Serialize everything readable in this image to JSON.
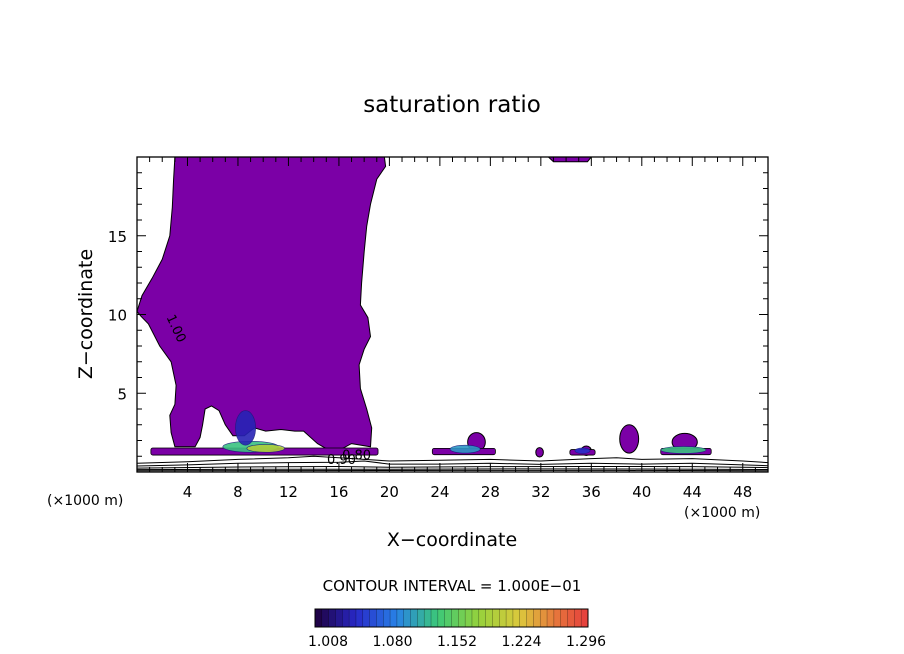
{
  "chart_data": {
    "type": "contour",
    "title": "saturation ratio",
    "xlabel": "X−coordinate",
    "ylabel": "Z−coordinate",
    "x_unit_left": "(×1000 m)",
    "x_unit_right": "(×1000 m)",
    "xlim": [
      0,
      50
    ],
    "ylim": [
      0,
      20
    ],
    "x_ticks": [
      4,
      8,
      12,
      16,
      20,
      24,
      28,
      32,
      36,
      40,
      44,
      48
    ],
    "y_ticks": [
      5,
      10,
      15
    ],
    "x_minor_step": 1,
    "y_minor_step": 1,
    "contour_interval_text": "CONTOUR INTERVAL = 1.000E−01",
    "contour_labels": [
      {
        "text": "1.00",
        "x": 2.8,
        "y": 9.0,
        "rotation": 65
      },
      {
        "text": "0.90",
        "x": 16.2,
        "y": 0.5,
        "rotation": 0
      },
      {
        "text": "0.80",
        "x": 17.4,
        "y": 0.8,
        "rotation": 0
      }
    ],
    "fill_color": "#7b00a6",
    "outline_color": "#000000",
    "main_region": [
      [
        0,
        10.2
      ],
      [
        0.4,
        11.2
      ],
      [
        1.2,
        12.3
      ],
      [
        2.0,
        13.5
      ],
      [
        2.6,
        15.0
      ],
      [
        2.8,
        16.8
      ],
      [
        2.9,
        18.6
      ],
      [
        3.0,
        20.0
      ],
      [
        19.6,
        20.0
      ],
      [
        19.7,
        19.4
      ],
      [
        19.0,
        18.6
      ],
      [
        18.5,
        17.0
      ],
      [
        18.2,
        15.6
      ],
      [
        18.0,
        14.0
      ],
      [
        17.8,
        12.0
      ],
      [
        17.7,
        10.6
      ],
      [
        18.3,
        9.8
      ],
      [
        18.5,
        8.6
      ],
      [
        18.0,
        7.8
      ],
      [
        17.6,
        6.8
      ],
      [
        17.7,
        5.3
      ],
      [
        18.2,
        4.0
      ],
      [
        18.6,
        2.8
      ],
      [
        18.5,
        1.6
      ],
      [
        17.0,
        1.8
      ],
      [
        15.6,
        1.2
      ],
      [
        14.3,
        1.8
      ],
      [
        13.2,
        2.6
      ],
      [
        12.5,
        2.6
      ],
      [
        11.4,
        2.7
      ],
      [
        10.2,
        2.6
      ],
      [
        9.3,
        2.8
      ],
      [
        8.5,
        2.3
      ],
      [
        7.6,
        2.3
      ],
      [
        7.0,
        3.0
      ],
      [
        6.5,
        3.9
      ],
      [
        5.9,
        4.2
      ],
      [
        5.4,
        4.0
      ],
      [
        5.2,
        3.0
      ],
      [
        5.0,
        2.2
      ],
      [
        4.6,
        1.6
      ],
      [
        3.0,
        1.6
      ],
      [
        2.7,
        2.5
      ],
      [
        2.6,
        3.6
      ],
      [
        3.0,
        4.3
      ],
      [
        3.1,
        5.5
      ],
      [
        2.7,
        7.0
      ],
      [
        1.8,
        8.0
      ],
      [
        0.9,
        9.4
      ],
      [
        0.3,
        9.9
      ]
    ],
    "top_cap": [
      [
        32.6,
        20.0
      ],
      [
        36.0,
        20.0
      ],
      [
        35.7,
        19.7
      ],
      [
        33.0,
        19.7
      ]
    ],
    "blobs": [
      {
        "cx": 26.9,
        "cy": 1.9,
        "rx": 0.7,
        "ry": 0.6
      },
      {
        "cx": 39.0,
        "cy": 2.1,
        "rx": 0.75,
        "ry": 0.9
      },
      {
        "cx": 43.4,
        "cy": 1.9,
        "rx": 1.0,
        "ry": 0.55
      },
      {
        "cx": 35.6,
        "cy": 1.35,
        "rx": 0.4,
        "ry": 0.3
      },
      {
        "cx": 31.9,
        "cy": 1.25,
        "rx": 0.3,
        "ry": 0.3
      }
    ],
    "low_bands": [
      {
        "x0": 1.1,
        "x1": 19.1,
        "y": 1.3,
        "h": 0.45
      },
      {
        "x0": 23.4,
        "x1": 28.4,
        "y": 1.3,
        "h": 0.4
      },
      {
        "x0": 34.3,
        "x1": 36.3,
        "y": 1.25,
        "h": 0.35
      },
      {
        "x0": 41.5,
        "x1": 45.5,
        "y": 1.3,
        "h": 0.4
      }
    ],
    "high_spots": [
      {
        "cx": 9.0,
        "cy": 1.6,
        "rx": 2.2,
        "ry": 0.35,
        "level": 1.15
      },
      {
        "cx": 8.6,
        "cy": 2.8,
        "rx": 0.8,
        "ry": 1.1,
        "level": 1.05
      },
      {
        "cx": 10.2,
        "cy": 1.5,
        "rx": 1.5,
        "ry": 0.25,
        "level": 1.22
      },
      {
        "cx": 26.0,
        "cy": 1.45,
        "rx": 1.2,
        "ry": 0.25,
        "level": 1.12
      },
      {
        "cx": 43.3,
        "cy": 1.4,
        "rx": 1.8,
        "ry": 0.22,
        "level": 1.15
      },
      {
        "cx": 35.3,
        "cy": 1.35,
        "rx": 0.6,
        "ry": 0.18,
        "level": 1.06
      }
    ],
    "contour_lines": [
      {
        "level": 0.9,
        "points": [
          [
            0,
            0.55
          ],
          [
            4,
            0.65
          ],
          [
            8,
            0.8
          ],
          [
            12,
            0.9
          ],
          [
            14,
            1.0
          ],
          [
            16,
            0.9
          ],
          [
            18,
            0.8
          ],
          [
            20,
            0.7
          ],
          [
            24,
            0.75
          ],
          [
            28,
            0.8
          ],
          [
            32,
            0.7
          ],
          [
            36,
            0.85
          ],
          [
            38,
            0.9
          ],
          [
            40,
            0.8
          ],
          [
            44,
            0.85
          ],
          [
            48,
            0.7
          ],
          [
            50,
            0.6
          ]
        ]
      },
      {
        "level": 0.8,
        "points": [
          [
            0,
            0.38
          ],
          [
            4,
            0.45
          ],
          [
            8,
            0.55
          ],
          [
            12,
            0.6
          ],
          [
            16,
            0.62
          ],
          [
            18,
            0.7
          ],
          [
            20,
            0.5
          ],
          [
            24,
            0.5
          ],
          [
            28,
            0.55
          ],
          [
            32,
            0.48
          ],
          [
            36,
            0.55
          ],
          [
            40,
            0.5
          ],
          [
            44,
            0.55
          ],
          [
            48,
            0.45
          ],
          [
            50,
            0.4
          ]
        ]
      },
      {
        "level": 0.7,
        "points": [
          [
            0,
            0.25
          ],
          [
            8,
            0.32
          ],
          [
            16,
            0.35
          ],
          [
            20,
            0.3
          ],
          [
            28,
            0.34
          ],
          [
            36,
            0.35
          ],
          [
            44,
            0.34
          ],
          [
            50,
            0.28
          ]
        ]
      },
      {
        "level": 0.6,
        "points": [
          [
            0,
            0.15
          ],
          [
            10,
            0.18
          ],
          [
            20,
            0.17
          ],
          [
            30,
            0.2
          ],
          [
            40,
            0.19
          ],
          [
            50,
            0.16
          ]
        ]
      },
      {
        "level": 0.5,
        "points": [
          [
            0,
            0.08
          ],
          [
            12,
            0.09
          ],
          [
            25,
            0.1
          ],
          [
            38,
            0.1
          ],
          [
            50,
            0.08
          ]
        ]
      }
    ],
    "colorbar": {
      "min": 1.008,
      "max": 1.332,
      "segments": 40,
      "labels": [
        "1.008",
        "1.080",
        "1.152",
        "1.224",
        "1.296"
      ]
    }
  }
}
